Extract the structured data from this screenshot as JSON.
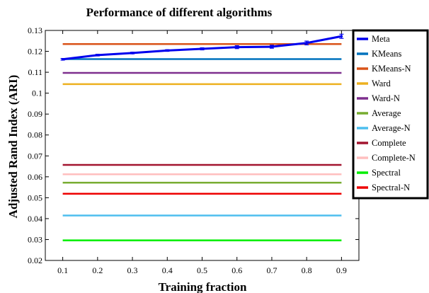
{
  "chart_data": {
    "type": "line",
    "title": "Performance of different algorithms",
    "xlabel": "Training fraction",
    "ylabel": "Adjusted Rand Index (ARI)",
    "x": [
      0.1,
      0.2,
      0.3,
      0.4,
      0.5,
      0.6,
      0.7,
      0.8,
      0.9
    ],
    "x_tick_labels": [
      "0.1",
      "0.2",
      "0.3",
      "0.4",
      "0.5",
      "0.6",
      "0.7",
      "0.8",
      "0.9"
    ],
    "xlim": [
      0.05,
      0.95
    ],
    "ylim": [
      0.02,
      0.13
    ],
    "y_ticks": [
      0.02,
      0.03,
      0.04,
      0.05,
      0.06,
      0.07,
      0.08,
      0.09,
      0.1,
      0.11,
      0.12,
      0.13
    ],
    "y_tick_labels": [
      "0.02",
      "0.03",
      "0.04",
      "0.05",
      "0.06",
      "0.07",
      "0.08",
      "0.09",
      "0.1",
      "0.11",
      "0.12",
      "0.13"
    ],
    "grid": false,
    "legend_position": "outside-right-top",
    "series": [
      {
        "name": "Meta",
        "color": "#0000ee",
        "values": [
          0.1162,
          0.1182,
          0.1192,
          0.1204,
          0.1212,
          0.122,
          0.1222,
          0.124,
          0.1272
        ],
        "errors": [
          0.0004,
          0.0004,
          0.0004,
          0.0004,
          0.0005,
          0.0007,
          0.0007,
          0.0009,
          0.001
        ]
      },
      {
        "name": "KMeans",
        "color": "#0072bd",
        "values": [
          0.1163,
          0.1163,
          0.1163,
          0.1163,
          0.1163,
          0.1163,
          0.1163,
          0.1163,
          0.1163
        ]
      },
      {
        "name": "KMeans-N",
        "color": "#d95319",
        "values": [
          0.1235,
          0.1235,
          0.1235,
          0.1235,
          0.1235,
          0.1235,
          0.1235,
          0.1235,
          0.1235
        ]
      },
      {
        "name": "Ward",
        "color": "#edb120",
        "values": [
          0.1043,
          0.1043,
          0.1043,
          0.1043,
          0.1043,
          0.1043,
          0.1043,
          0.1043,
          0.1043
        ]
      },
      {
        "name": "Ward-N",
        "color": "#7e2f8e",
        "values": [
          0.1097,
          0.1097,
          0.1097,
          0.1097,
          0.1097,
          0.1097,
          0.1097,
          0.1097,
          0.1097
        ]
      },
      {
        "name": "Average",
        "color": "#77ac30",
        "values": [
          0.0572,
          0.0572,
          0.0572,
          0.0572,
          0.0572,
          0.0572,
          0.0572,
          0.0572,
          0.0572
        ]
      },
      {
        "name": "Average-N",
        "color": "#4dbeee",
        "values": [
          0.0415,
          0.0415,
          0.0415,
          0.0415,
          0.0415,
          0.0415,
          0.0415,
          0.0415,
          0.0415
        ]
      },
      {
        "name": "Complete",
        "color": "#a2142f",
        "values": [
          0.0657,
          0.0657,
          0.0657,
          0.0657,
          0.0657,
          0.0657,
          0.0657,
          0.0657,
          0.0657
        ]
      },
      {
        "name": "Complete-N",
        "color": "#ffbfbf",
        "values": [
          0.0612,
          0.0612,
          0.0612,
          0.0612,
          0.0612,
          0.0612,
          0.0612,
          0.0612,
          0.0612
        ]
      },
      {
        "name": "Spectral",
        "color": "#00ee00",
        "values": [
          0.0296,
          0.0296,
          0.0296,
          0.0296,
          0.0296,
          0.0296,
          0.0296,
          0.0296,
          0.0296
        ]
      },
      {
        "name": "Spectral-N",
        "color": "#ee0000",
        "values": [
          0.0519,
          0.0519,
          0.0519,
          0.0519,
          0.0519,
          0.0519,
          0.0519,
          0.0519,
          0.0519
        ]
      }
    ]
  }
}
